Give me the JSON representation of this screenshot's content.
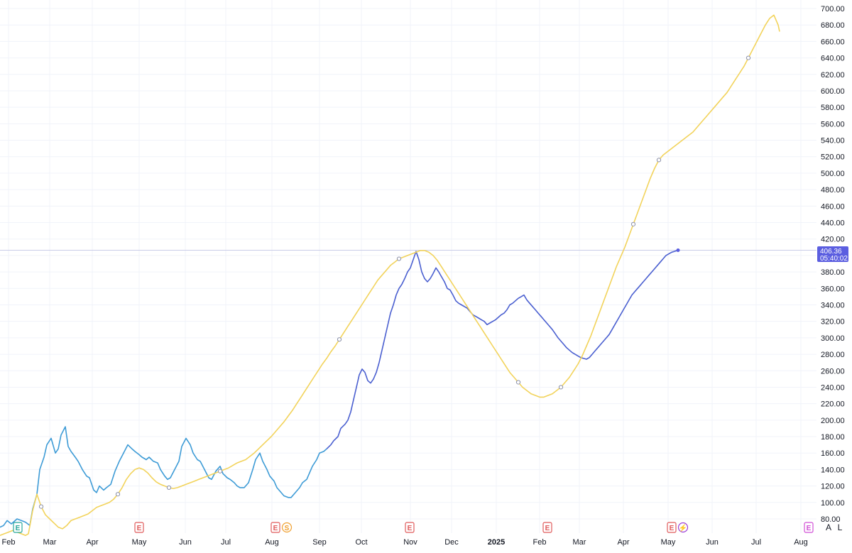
{
  "chart_data": {
    "type": "line",
    "y_ticks": [
      "700.00",
      "680.00",
      "660.00",
      "640.00",
      "620.00",
      "600.00",
      "580.00",
      "560.00",
      "540.00",
      "520.00",
      "500.00",
      "480.00",
      "460.00",
      "440.00",
      "420.00",
      "400.00",
      "380.00",
      "360.00",
      "340.00",
      "320.00",
      "300.00",
      "280.00",
      "260.00",
      "240.00",
      "220.00",
      "200.00",
      "180.00",
      "160.00",
      "140.00",
      "120.00",
      "100.00",
      "80.00"
    ],
    "ylim": [
      80,
      700
    ],
    "x_ticks": [
      "Feb",
      "Mar",
      "Apr",
      "May",
      "Jun",
      "Jul",
      "Aug",
      "Sep",
      "Oct",
      "Nov",
      "Dec",
      "2025",
      "Feb",
      "Mar",
      "Apr",
      "May",
      "Jun",
      "Jul",
      "Aug"
    ],
    "x_tick_bold": "2025",
    "grid": true,
    "last_price": {
      "value": "406.36",
      "countdown": "05:40:02"
    },
    "series": [
      {
        "color": "#3d9bd6",
        "x": [
          0,
          5,
          10,
          16,
          24,
          30,
          36,
          42,
          46,
          52,
          56,
          62,
          66,
          72,
          78,
          82,
          86,
          92,
          96,
          100,
          106,
          110,
          116,
          122,
          126,
          132,
          136,
          140,
          146,
          150,
          156,
          162,
          168,
          174,
          180,
          186,
          190,
          196,
          200,
          206,
          210,
          216,
          222,
          226,
          232,
          236,
          240,
          246,
          252,
          256,
          262,
          268,
          272,
          278,
          282,
          288,
          294,
          298,
          304,
          310,
          314,
          320,
          324,
          330,
          334,
          338,
          344,
          350,
          356,
          360,
          366,
          370,
          376,
          380,
          386,
          390,
          396,
          400,
          406,
          410,
          416,
          422,
          426,
          432,
          436,
          440,
          446,
          450,
          456,
          460
        ],
        "values": [
          70,
          72,
          78,
          74,
          80,
          78,
          76,
          72,
          92,
          110,
          140,
          155,
          170,
          178,
          160,
          165,
          182,
          192,
          168,
          162,
          155,
          150,
          140,
          132,
          130,
          115,
          112,
          120,
          115,
          118,
          122,
          138,
          150,
          160,
          170,
          165,
          162,
          158,
          155,
          152,
          155,
          150,
          148,
          140,
          132,
          128,
          130,
          140,
          150,
          168,
          178,
          170,
          160,
          152,
          150,
          140,
          130,
          128,
          138,
          144,
          135,
          130,
          128,
          124,
          120,
          118,
          118,
          124,
          140,
          152,
          160,
          150,
          140,
          132,
          126,
          118,
          112,
          108,
          106,
          106,
          112,
          118,
          124,
          128,
          136,
          144,
          152,
          160,
          162,
          165
        ]
      },
      {
        "color": "#4a5fd0",
        "x": [
          460,
          466,
          470,
          476,
          480,
          486,
          490,
          494,
          498,
          502,
          506,
          510,
          514,
          518,
          522,
          526,
          530,
          534,
          538,
          542,
          546,
          550,
          554,
          558,
          562,
          566,
          570,
          574,
          578,
          582,
          586,
          590,
          594,
          598,
          602,
          606,
          610,
          614,
          618,
          622,
          626,
          630,
          634,
          638,
          642,
          646,
          650,
          654,
          658,
          662,
          666,
          670,
          674,
          678,
          682,
          686,
          690,
          694,
          698,
          702,
          706,
          710,
          714,
          718,
          722,
          726,
          730,
          734,
          738,
          742,
          746,
          750,
          754,
          758,
          762,
          766,
          770,
          774,
          778,
          782,
          786,
          790,
          794,
          798,
          802,
          806,
          810,
          814,
          818,
          822,
          826,
          830,
          834,
          838,
          842,
          846,
          850,
          854,
          858,
          862,
          866,
          870,
          874,
          878,
          882,
          886,
          890,
          894,
          898,
          902,
          906,
          910,
          914,
          918,
          922,
          926,
          930,
          934,
          938,
          942,
          946,
          950,
          955
        ],
        "values": [
          165,
          170,
          175,
          180,
          190,
          195,
          200,
          210,
          225,
          240,
          255,
          262,
          258,
          248,
          245,
          250,
          258,
          270,
          285,
          300,
          315,
          330,
          340,
          352,
          360,
          365,
          372,
          380,
          385,
          395,
          405,
          395,
          380,
          372,
          368,
          372,
          378,
          385,
          380,
          374,
          368,
          360,
          358,
          352,
          345,
          342,
          340,
          338,
          336,
          332,
          328,
          326,
          324,
          322,
          320,
          316,
          318,
          320,
          322,
          325,
          328,
          330,
          334,
          340,
          342,
          345,
          348,
          350,
          352,
          346,
          342,
          338,
          334,
          330,
          326,
          322,
          318,
          314,
          310,
          305,
          300,
          296,
          292,
          288,
          285,
          282,
          280,
          278,
          276,
          275,
          274,
          276,
          280,
          284,
          288,
          292,
          296,
          300,
          304,
          310,
          316,
          322,
          328,
          334,
          340,
          346,
          352,
          356,
          360,
          364,
          368,
          372,
          376,
          380,
          384,
          388,
          392,
          396,
          400,
          402,
          404,
          405,
          406.36
        ]
      },
      {
        "color": "#f2d35b",
        "x": [
          0,
          6,
          12,
          18,
          24,
          30,
          36,
          40,
          46,
          52,
          58,
          64,
          70,
          76,
          82,
          88,
          94,
          100,
          106,
          112,
          118,
          124,
          130,
          136,
          142,
          148,
          154,
          160,
          166,
          172,
          178,
          184,
          190,
          196,
          202,
          208,
          214,
          220,
          226,
          232,
          238,
          244,
          250,
          256,
          262,
          268,
          274,
          280,
          286,
          292,
          298,
          304,
          310,
          316,
          322,
          328,
          334,
          340,
          346,
          352,
          358,
          364,
          370,
          376,
          382,
          388,
          394,
          400,
          406,
          412,
          418,
          424,
          430,
          436,
          442,
          448,
          454,
          460,
          466,
          472,
          478,
          484,
          490,
          496,
          502,
          508,
          514,
          520,
          526,
          532,
          538,
          544,
          550,
          556,
          562,
          568,
          574,
          580,
          586,
          592,
          598,
          604,
          610,
          616,
          622,
          628,
          634,
          640,
          646,
          652,
          658,
          664,
          670,
          676,
          682,
          688,
          694,
          700,
          706,
          712,
          718,
          724,
          730,
          736,
          742,
          748,
          754,
          760,
          766,
          772,
          778,
          784,
          790,
          796,
          802,
          808,
          814,
          820,
          826,
          832,
          838,
          844,
          850,
          856,
          862,
          868,
          874,
          880,
          886,
          892,
          898,
          904,
          910,
          916,
          922,
          928,
          934,
          940,
          946,
          952,
          958,
          964,
          970,
          976,
          982,
          988,
          994,
          1000,
          1006,
          1012,
          1018,
          1024,
          1030,
          1036,
          1042,
          1048,
          1054,
          1060,
          1066,
          1072,
          1078,
          1084,
          1090,
          1096,
          1098
        ],
        "values": [
          60,
          62,
          64,
          66,
          64,
          62,
          60,
          62,
          90,
          110,
          95,
          85,
          80,
          75,
          70,
          68,
          72,
          78,
          80,
          82,
          84,
          86,
          90,
          94,
          96,
          98,
          100,
          104,
          110,
          118,
          128,
          135,
          140,
          142,
          140,
          136,
          130,
          125,
          122,
          120,
          118,
          117,
          118,
          120,
          122,
          124,
          126,
          128,
          130,
          132,
          134,
          136,
          138,
          140,
          142,
          145,
          148,
          150,
          152,
          156,
          160,
          165,
          170,
          175,
          180,
          186,
          192,
          198,
          205,
          212,
          220,
          228,
          236,
          244,
          252,
          260,
          268,
          275,
          283,
          290,
          298,
          306,
          314,
          322,
          330,
          338,
          346,
          354,
          362,
          370,
          376,
          382,
          388,
          392,
          396,
          398,
          400,
          402,
          404,
          406,
          406,
          404,
          400,
          394,
          386,
          378,
          370,
          362,
          354,
          346,
          338,
          330,
          322,
          314,
          306,
          298,
          290,
          282,
          274,
          266,
          258,
          252,
          246,
          240,
          236,
          232,
          230,
          228,
          228,
          230,
          232,
          236,
          240,
          246,
          252,
          260,
          268,
          278,
          290,
          302,
          316,
          330,
          344,
          358,
          372,
          386,
          398,
          410,
          424,
          438,
          452,
          466,
          480,
          494,
          506,
          516,
          522,
          526,
          530,
          534,
          538,
          542,
          546,
          550,
          556,
          562,
          568,
          574,
          580,
          586,
          592,
          598,
          606,
          614,
          622,
          630,
          640,
          650,
          660,
          670,
          680,
          688,
          692,
          680,
          672
        ]
      }
    ],
    "event_badges": [
      {
        "letter": "E",
        "color": "#26a69a"
      },
      {
        "letter": "E",
        "color": "#e05b5b"
      },
      {
        "letter": "E",
        "color": "#e05b5b"
      },
      {
        "letter": "S",
        "color": "#f0a030"
      },
      {
        "letter": "E",
        "color": "#e05b5b"
      },
      {
        "letter": "E",
        "color": "#e05b5b"
      },
      {
        "letter": "E",
        "color": "#e05b5b"
      },
      {
        "letter": "⚡",
        "color": "#9c3fd6"
      },
      {
        "letter": "E",
        "color": "#d14fd6"
      }
    ],
    "corner_buttons": [
      "A",
      "L"
    ]
  }
}
